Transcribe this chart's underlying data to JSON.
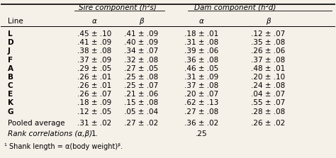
{
  "title": "",
  "col_headers_top": [
    "Sire component (h²s)",
    "Dam component (h²d)"
  ],
  "col_headers_sub": [
    "Line",
    "α",
    "β",
    "α",
    "β"
  ],
  "rows": [
    [
      "L",
      ".45 ± .10",
      ".41 ± .09",
      ".18 ± .01",
      ".12 ± .07"
    ],
    [
      "D",
      ".41 ± .09",
      ".40 ± .09",
      ".31 ± .08",
      ".35 ± .08"
    ],
    [
      "J",
      ".38 ± .08",
      ".34 ± .07",
      ".39 ± .06",
      ".26 ± .06"
    ],
    [
      "F",
      ".37 ± .09",
      ".32 ± .08",
      ".36 ± .08",
      ".37 ± .08"
    ],
    [
      "A",
      ".29 ± .05",
      ".27 ± .05",
      ".46 ± .05",
      ".48 ± .01"
    ],
    [
      "B",
      ".26 ± .01",
      ".25 ± .08",
      ".31 ± .09",
      ".20 ± .10"
    ],
    [
      "C",
      ".26 ± .01",
      ".25 ± .07",
      ".37 ± .08",
      ".24 ± .08"
    ],
    [
      "E",
      ".26 ± .07",
      ".21 ± .06",
      ".20 ± .07",
      ".04 ± .07"
    ],
    [
      "K",
      ".18 ± .09",
      ".15 ± .08",
      ".62 ± .13",
      ".55 ± .07"
    ],
    [
      "G",
      ".12 ± .05",
      ".05 ± .04",
      ".27 ± .08",
      ".28 ± .08"
    ]
  ],
  "pooled_row": [
    "Pooled average",
    ".31 ± .02",
    ".27 ± .02",
    ".36 ± .02",
    ".26 ± .02"
  ],
  "rank_row": [
    "Rank correlations (α,β)",
    "1.",
    "",
    ".25",
    ""
  ],
  "footnote": "¹ Shank length = α(body weight)ᵝ.",
  "bg_color": "#f5f0e8",
  "font_size": 7.5,
  "header_font_size": 7.5
}
